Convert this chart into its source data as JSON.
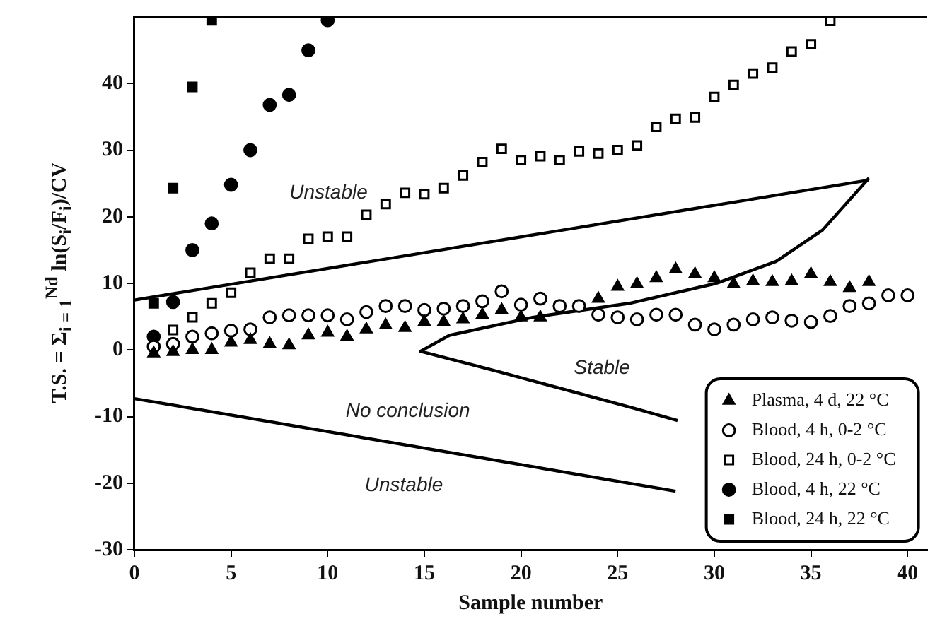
{
  "chart_data": {
    "type": "scatter",
    "xlabel": "Sample number",
    "ylabel": "T.S. = Σ$_{i = 1}$$^{Nd}$ ln(S$_{i}$/F$_{i}$)/CV",
    "xlim": [
      0,
      41
    ],
    "ylim": [
      -30,
      50
    ],
    "xticks": [
      0,
      5,
      10,
      15,
      20,
      25,
      30,
      35,
      40
    ],
    "yticks": [
      -30,
      -20,
      -10,
      0,
      10,
      20,
      30,
      40
    ],
    "grid": false,
    "legend": "bottom right",
    "series": [
      {
        "name": "Plasma, 4 d, 22 °C",
        "color": "#000000",
        "marker": "triangle",
        "x": [
          1,
          2,
          3,
          4,
          5,
          6,
          7,
          8,
          9,
          10,
          11,
          12,
          13,
          14,
          15,
          16,
          17,
          18,
          19,
          20,
          21,
          24,
          25,
          26,
          27,
          28,
          29,
          30,
          31,
          32,
          33,
          34,
          35,
          36,
          37,
          38
        ],
        "values": [
          -0.5,
          -0.3,
          0,
          0,
          1.1,
          1.5,
          0.9,
          0.7,
          2.2,
          2.6,
          2,
          3.1,
          3.7,
          3.3,
          4.2,
          4.2,
          4.6,
          5.3,
          6,
          4.9,
          4.9,
          7.7,
          9.5,
          9.9,
          10.8,
          12.1,
          11.4,
          10.8,
          9.9,
          10.3,
          10.2,
          10.3,
          11.4,
          10.2,
          9.3,
          10.2
        ]
      },
      {
        "name": "Blood, 4 h, 0-2 °C",
        "color": "#ffffff",
        "marker": "circle",
        "x": [
          1,
          2,
          3,
          4,
          5,
          6,
          7,
          8,
          9,
          10,
          11,
          12,
          13,
          14,
          15,
          16,
          17,
          18,
          19,
          20,
          21,
          22,
          23,
          24,
          25,
          26,
          27,
          28,
          29,
          30,
          31,
          32,
          33,
          34,
          35,
          36,
          37,
          38,
          39,
          40
        ],
        "values": [
          0.5,
          0.9,
          2,
          2.5,
          2.9,
          3.1,
          4.9,
          5.2,
          5.2,
          5.2,
          4.6,
          5.7,
          6.6,
          6.6,
          6,
          6.2,
          6.6,
          7.3,
          8.8,
          6.8,
          7.7,
          6.6,
          6.6,
          5.3,
          4.9,
          4.6,
          5.3,
          5.3,
          3.8,
          3.1,
          3.8,
          4.6,
          4.9,
          4.4,
          4.2,
          5.1,
          6.6,
          7,
          8.2,
          8.2
        ]
      },
      {
        "name": "Blood, 24 h, 0-2 °C",
        "color": "#ffffff",
        "marker": "square",
        "x": [
          2,
          3,
          4,
          5,
          6,
          7,
          8,
          9,
          10,
          11,
          12,
          13,
          14,
          15,
          16,
          17,
          18,
          19,
          20,
          21,
          22,
          23,
          24,
          25,
          26,
          27,
          28,
          29,
          30,
          31,
          32,
          33,
          34,
          35,
          36
        ],
        "values": [
          3,
          4.9,
          7,
          8.6,
          11.6,
          13.7,
          13.7,
          16.7,
          17,
          17,
          20.3,
          21.9,
          23.6,
          23.4,
          24.3,
          26.2,
          28.2,
          30.2,
          28.5,
          29.1,
          28.5,
          29.8,
          29.5,
          30,
          30.7,
          33.5,
          34.7,
          34.9,
          38,
          39.8,
          41.5,
          42.4,
          44.8,
          45.9,
          49.4
        ]
      },
      {
        "name": "Blood, 4 h, 22 °C",
        "color": "#000000",
        "marker": "circle",
        "x": [
          1,
          2,
          3,
          4,
          5,
          6,
          7,
          8,
          9,
          10
        ],
        "values": [
          2,
          7.2,
          15,
          19,
          24.8,
          30,
          36.8,
          38.3,
          45,
          49.5
        ]
      },
      {
        "name": "Blood, 24 h, 22 °C",
        "color": "#000000",
        "marker": "square",
        "x": [
          1,
          2,
          3,
          4
        ],
        "values": [
          7,
          24.3,
          39.5,
          49.5
        ]
      },
      {
        "type": "line",
        "color": "#000000",
        "marker": "none",
        "x": [
          0,
          38
        ],
        "values": [
          7.5,
          25.5
        ]
      },
      {
        "type": "line",
        "color": "#000000",
        "marker": "none",
        "x": [
          38,
          35.6,
          33.2,
          30.1,
          25.6,
          20.6,
          16.3,
          14.8,
          18.9,
          25.9,
          28.1
        ],
        "values": [
          25.8,
          18,
          13.3,
          10,
          7,
          4.9,
          2.2,
          -0.2,
          -3.3,
          -8.8,
          -10.6
        ]
      },
      {
        "type": "line",
        "color": "#000000",
        "marker": "none",
        "x": [
          0,
          28
        ],
        "values": [
          -7.3,
          -21.2
        ]
      }
    ],
    "annotations": [
      "Unstable",
      "Stable",
      "No conclusion",
      "Unstable"
    ]
  }
}
